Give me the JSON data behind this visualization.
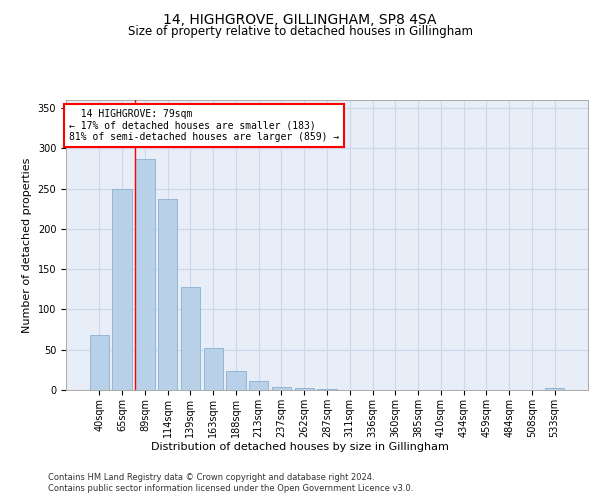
{
  "title": "14, HIGHGROVE, GILLINGHAM, SP8 4SA",
  "subtitle": "Size of property relative to detached houses in Gillingham",
  "xlabel": "Distribution of detached houses by size in Gillingham",
  "ylabel": "Number of detached properties",
  "footnote1": "Contains HM Land Registry data © Crown copyright and database right 2024.",
  "footnote2": "Contains public sector information licensed under the Open Government Licence v3.0.",
  "bins": [
    "40sqm",
    "65sqm",
    "89sqm",
    "114sqm",
    "139sqm",
    "163sqm",
    "188sqm",
    "213sqm",
    "237sqm",
    "262sqm",
    "287sqm",
    "311sqm",
    "336sqm",
    "360sqm",
    "385sqm",
    "410sqm",
    "434sqm",
    "459sqm",
    "484sqm",
    "508sqm",
    "533sqm"
  ],
  "values": [
    68,
    250,
    287,
    237,
    128,
    52,
    23,
    11,
    4,
    2,
    1,
    0,
    0,
    0,
    0,
    0,
    0,
    0,
    0,
    0,
    2
  ],
  "bar_color": "#b8d0e8",
  "bar_edge_color": "#8ab0d0",
  "grid_color": "#ccd8ea",
  "background_color": "#e8eef8",
  "red_line_x": 1.58,
  "annotation_text": "  14 HIGHGROVE: 79sqm\n← 17% of detached houses are smaller (183)\n81% of semi-detached houses are larger (859) →",
  "annotation_box_color": "white",
  "annotation_box_edge_color": "red",
  "ylim": [
    0,
    360
  ],
  "yticks": [
    0,
    50,
    100,
    150,
    200,
    250,
    300,
    350
  ],
  "title_fontsize": 10,
  "subtitle_fontsize": 8.5,
  "ylabel_fontsize": 8,
  "xlabel_fontsize": 8,
  "tick_fontsize": 7,
  "footnote_fontsize": 6
}
